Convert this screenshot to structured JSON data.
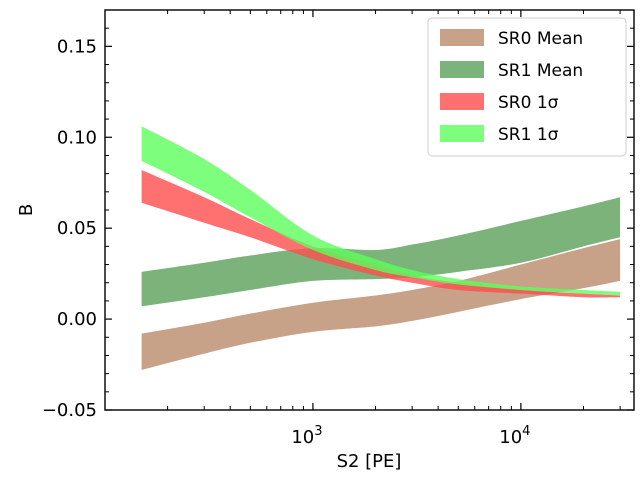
{
  "chart_data": {
    "type": "area",
    "xlabel": "S2 [PE]",
    "ylabel": "B",
    "xscale": "log",
    "xlim": [
      100,
      35000
    ],
    "ylim": [
      -0.05,
      0.17
    ],
    "grid": false,
    "legend_position": "top-right",
    "x_ticks": [
      {
        "value": 1000,
        "base": "10",
        "exp": "3"
      },
      {
        "value": 10000,
        "base": "10",
        "exp": "4"
      }
    ],
    "y_ticks": [
      {
        "value": -0.05,
        "label": "−0.05"
      },
      {
        "value": 0.0,
        "label": "0.00"
      },
      {
        "value": 0.05,
        "label": "0.05"
      },
      {
        "value": 0.1,
        "label": "0.10"
      },
      {
        "value": 0.15,
        "label": "0.15"
      }
    ],
    "x": [
      150,
      300,
      500,
      1000,
      2000,
      3000,
      5000,
      10000,
      20000,
      30000
    ],
    "series": [
      {
        "name": "SR0 Mean",
        "color": "#b9896a",
        "lower": [
          -0.028,
          -0.019,
          -0.013,
          -0.007,
          -0.004,
          -0.001,
          0.004,
          0.011,
          0.017,
          0.021
        ],
        "upper": [
          -0.008,
          -0.002,
          0.003,
          0.009,
          0.013,
          0.016,
          0.021,
          0.03,
          0.039,
          0.044
        ]
      },
      {
        "name": "SR1 Mean",
        "color": "#5aa05a",
        "lower": [
          0.007,
          0.012,
          0.016,
          0.021,
          0.022,
          0.023,
          0.026,
          0.031,
          0.04,
          0.045
        ],
        "upper": [
          0.026,
          0.031,
          0.035,
          0.039,
          0.038,
          0.041,
          0.046,
          0.054,
          0.062,
          0.067
        ]
      },
      {
        "name": "SR0 1σ",
        "color": "#ff4d4d",
        "lower": [
          0.064,
          0.053,
          0.045,
          0.033,
          0.024,
          0.02,
          0.016,
          0.014,
          0.012,
          0.012
        ],
        "upper": [
          0.082,
          0.067,
          0.055,
          0.04,
          0.03,
          0.024,
          0.02,
          0.016,
          0.014,
          0.013
        ]
      },
      {
        "name": "SR1 1σ",
        "color": "#5cff5c",
        "lower": [
          0.087,
          0.07,
          0.056,
          0.038,
          0.027,
          0.023,
          0.019,
          0.016,
          0.014,
          0.013
        ],
        "upper": [
          0.106,
          0.088,
          0.071,
          0.046,
          0.033,
          0.027,
          0.022,
          0.018,
          0.016,
          0.015
        ]
      }
    ],
    "legend": [
      {
        "label": "SR0 Mean",
        "color": "#b9896a",
        "opacity": 0.8
      },
      {
        "label": "SR1 Mean",
        "color": "#5aa05a",
        "opacity": 0.8
      },
      {
        "label": "SR0 1σ",
        "color": "#ff4d4d",
        "opacity": 0.8
      },
      {
        "label": "SR1 1σ",
        "color": "#5cff5c",
        "opacity": 0.8
      }
    ]
  }
}
